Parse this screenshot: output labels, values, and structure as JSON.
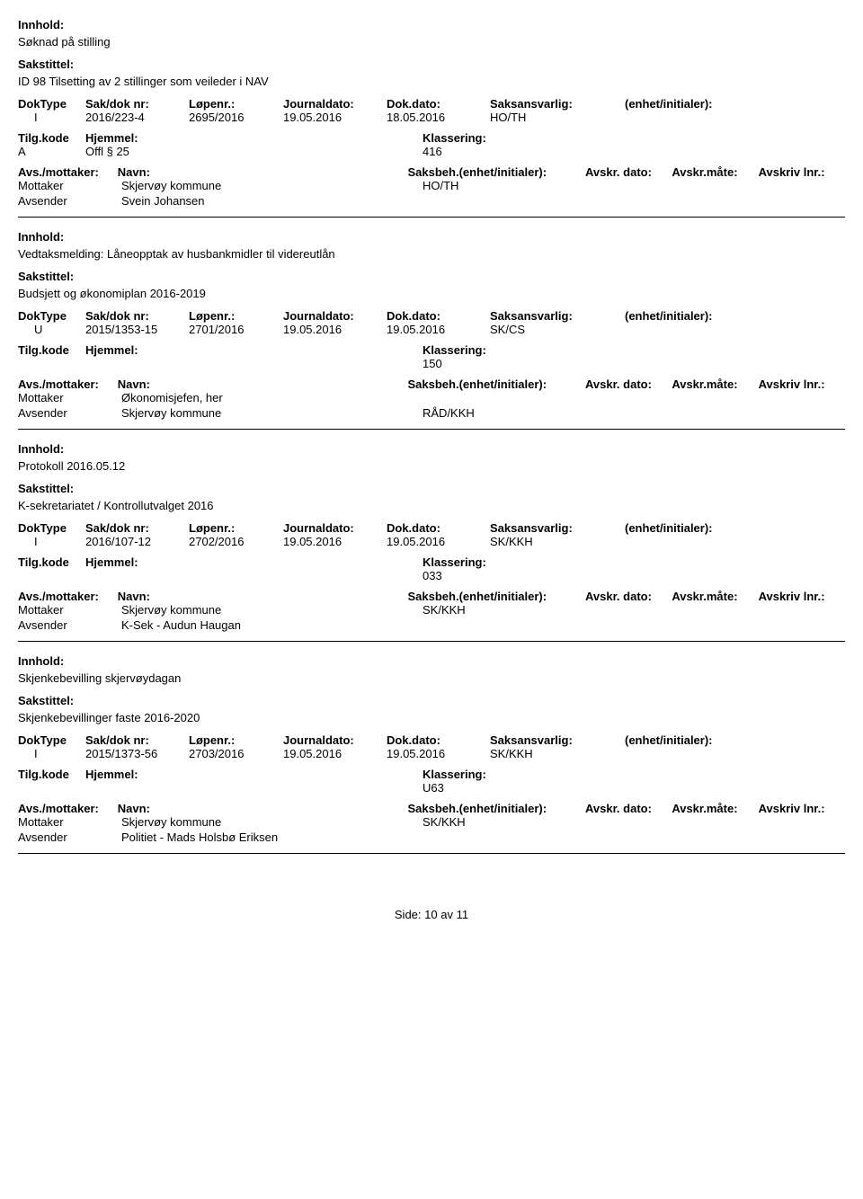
{
  "labels": {
    "innhold": "Innhold:",
    "sakstittel": "Sakstittel:",
    "doktype": "DokType",
    "sakdok": "Sak/dok nr:",
    "lopen": "Løpenr.:",
    "jdato": "Journaldato:",
    "ddato": "Dok.dato:",
    "saksans": "Saksansvarlig:",
    "enhet": "(enhet/initialer):",
    "tilgkode": "Tilg.kode",
    "hjemmel": "Hjemmel:",
    "klass": "Klassering:",
    "avsmottaker": "Avs./mottaker:",
    "navn": "Navn:",
    "saksbeh": "Saksbeh.(enhet/initialer):",
    "avskrdato": "Avskr. dato:",
    "avskrmate": "Avskr.måte:",
    "avskrlnr": "Avskriv lnr.:",
    "mottaker": "Mottaker",
    "avsender": "Avsender"
  },
  "records": [
    {
      "innhold": "Søknad på stilling",
      "sakstittel": "ID 98  Tilsetting av 2 stillinger som veileder i NAV",
      "doktype": "I",
      "sakdok": "2016/223-4",
      "lopen": "2695/2016",
      "jdato": "19.05.2016",
      "ddato": "18.05.2016",
      "saksans": "HO/TH",
      "tilg": "A",
      "hjemmel": "Offl § 25",
      "klass": "416",
      "parties": [
        {
          "role": "Mottaker",
          "navn": "Skjervøy kommune",
          "saksbeh": "HO/TH"
        },
        {
          "role": "Avsender",
          "navn": "Svein Johansen",
          "saksbeh": ""
        }
      ]
    },
    {
      "innhold": "Vedtaksmelding: Låneopptak av husbankmidler til videreutlån",
      "sakstittel": "Budsjett og økonomiplan 2016-2019",
      "doktype": "U",
      "sakdok": "2015/1353-15",
      "lopen": "2701/2016",
      "jdato": "19.05.2016",
      "ddato": "19.05.2016",
      "saksans": "SK/CS",
      "tilg": "",
      "hjemmel": "",
      "klass": "150",
      "parties": [
        {
          "role": "Mottaker",
          "navn": "Økonomisjefen, her",
          "saksbeh": ""
        },
        {
          "role": "Avsender",
          "navn": "Skjervøy kommune",
          "saksbeh": "RÅD/KKH"
        }
      ]
    },
    {
      "innhold": "Protokoll 2016.05.12",
      "sakstittel": "K-sekretariatet / Kontrollutvalget 2016",
      "doktype": "I",
      "sakdok": "2016/107-12",
      "lopen": "2702/2016",
      "jdato": "19.05.2016",
      "ddato": "19.05.2016",
      "saksans": "SK/KKH",
      "tilg": "",
      "hjemmel": "",
      "klass": "033",
      "parties": [
        {
          "role": "Mottaker",
          "navn": "Skjervøy kommune",
          "saksbeh": "SK/KKH"
        },
        {
          "role": "Avsender",
          "navn": "K-Sek - Audun Haugan",
          "saksbeh": ""
        }
      ]
    },
    {
      "innhold": "Skjenkebevilling skjervøydagan",
      "sakstittel": "Skjenkebevillinger faste 2016-2020",
      "doktype": "I",
      "sakdok": "2015/1373-56",
      "lopen": "2703/2016",
      "jdato": "19.05.2016",
      "ddato": "19.05.2016",
      "saksans": "SK/KKH",
      "tilg": "",
      "hjemmel": "",
      "klass": "U63",
      "parties": [
        {
          "role": "Mottaker",
          "navn": "Skjervøy kommune",
          "saksbeh": "SK/KKH"
        },
        {
          "role": "Avsender",
          "navn": "Politiet - Mads Holsbø Eriksen",
          "saksbeh": ""
        }
      ]
    }
  ],
  "footer": {
    "side": "Side:",
    "page": "10",
    "av": "av",
    "total": "11"
  }
}
